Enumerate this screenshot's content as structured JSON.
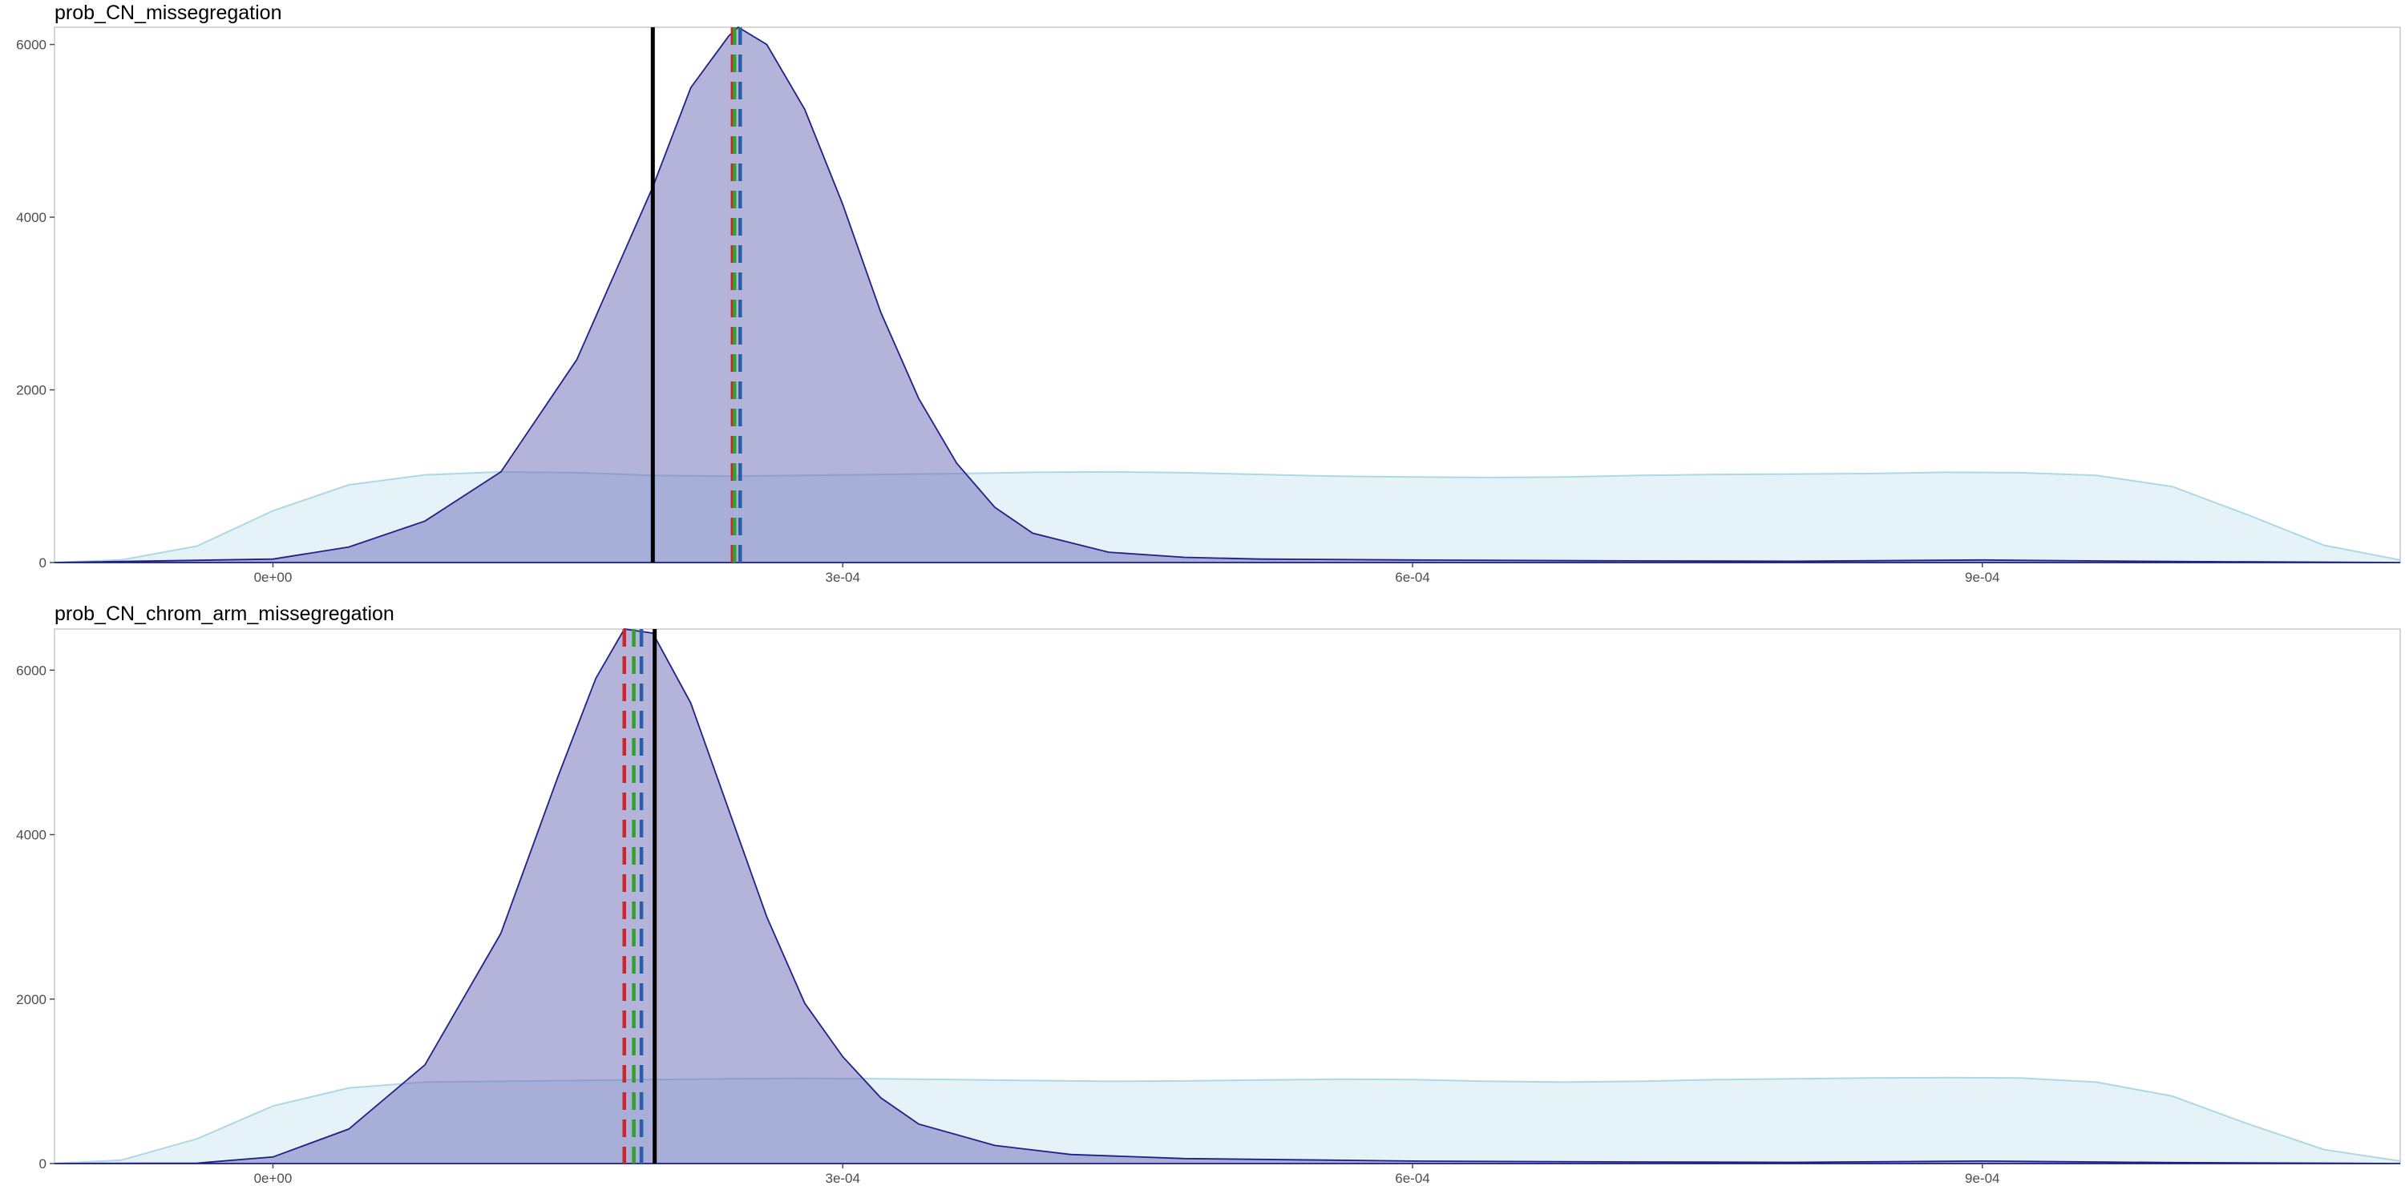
{
  "chart_data": [
    {
      "type": "area",
      "title": "prob_CN_missegregation",
      "xlabel": "",
      "ylabel": "",
      "xlim": [
        -0.000115,
        0.00112
      ],
      "ylim": [
        0,
        6200
      ],
      "xticks": [
        0.0,
        0.0003,
        0.0006,
        0.0009
      ],
      "xtick_labels": [
        "0e+00",
        "3e-04",
        "6e-04",
        "9e-04"
      ],
      "yticks": [
        0,
        2000,
        4000,
        6000
      ],
      "ytick_labels": [
        "0",
        "2000",
        "4000",
        "6000"
      ],
      "grid": false,
      "legend": "none",
      "series": [
        {
          "role": "prior",
          "color": "#add8e6",
          "points": [
            [
              -0.000115,
              2
            ],
            [
              -8e-05,
              30
            ],
            [
              -4e-05,
              190
            ],
            [
              0.0,
              600
            ],
            [
              4e-05,
              900
            ],
            [
              8e-05,
              1015
            ],
            [
              0.00012,
              1050
            ],
            [
              0.00016,
              1040
            ],
            [
              0.0002,
              1010
            ],
            [
              0.00024,
              1000
            ],
            [
              0.00028,
              1010
            ],
            [
              0.00032,
              1020
            ],
            [
              0.00036,
              1030
            ],
            [
              0.0004,
              1045
            ],
            [
              0.00044,
              1050
            ],
            [
              0.00048,
              1040
            ],
            [
              0.00052,
              1020
            ],
            [
              0.00056,
              1000
            ],
            [
              0.0006,
              990
            ],
            [
              0.00064,
              985
            ],
            [
              0.00068,
              990
            ],
            [
              0.00072,
              1010
            ],
            [
              0.00076,
              1020
            ],
            [
              0.0008,
              1025
            ],
            [
              0.00084,
              1030
            ],
            [
              0.00088,
              1045
            ],
            [
              0.00092,
              1040
            ],
            [
              0.00096,
              1010
            ],
            [
              0.001,
              880
            ],
            [
              0.00104,
              550
            ],
            [
              0.00108,
              200
            ],
            [
              0.00112,
              30
            ]
          ]
        },
        {
          "role": "posterior",
          "color": "#3a3aa8",
          "points": [
            [
              -0.000115,
              0
            ],
            [
              0.0,
              40
            ],
            [
              4e-05,
              180
            ],
            [
              8e-05,
              480
            ],
            [
              0.00012,
              1050
            ],
            [
              0.00016,
              2350
            ],
            [
              0.0002,
              4350
            ],
            [
              0.00022,
              5500
            ],
            [
              0.00024,
              6100
            ],
            [
              0.000245,
              6200
            ],
            [
              0.00026,
              6000
            ],
            [
              0.00028,
              5250
            ],
            [
              0.0003,
              4150
            ],
            [
              0.00032,
              2900
            ],
            [
              0.00034,
              1900
            ],
            [
              0.00036,
              1150
            ],
            [
              0.00038,
              640
            ],
            [
              0.0004,
              340
            ],
            [
              0.00044,
              120
            ],
            [
              0.00048,
              60
            ],
            [
              0.00052,
              40
            ],
            [
              0.0006,
              30
            ],
            [
              0.0007,
              20
            ],
            [
              0.0008,
              15
            ],
            [
              0.0009,
              30
            ],
            [
              0.001,
              12
            ],
            [
              0.00112,
              0
            ]
          ]
        }
      ],
      "vlines": [
        {
          "x": 0.0002,
          "color": "#000000",
          "style": "solid"
        },
        {
          "x": 0.000242,
          "color": "#cd2626",
          "style": "dashed"
        },
        {
          "x": 0.000243,
          "color": "#32a02c",
          "style": "dashed"
        },
        {
          "x": 0.000246,
          "color": "#2b5ea8",
          "style": "dashed"
        }
      ]
    },
    {
      "type": "area",
      "title": "prob_CN_chrom_arm_missegregation",
      "xlabel": "",
      "ylabel": "",
      "xlim": [
        -0.000115,
        0.00112
      ],
      "ylim": [
        0,
        6500
      ],
      "xticks": [
        0.0,
        0.0003,
        0.0006,
        0.0009
      ],
      "xtick_labels": [
        "0e+00",
        "3e-04",
        "6e-04",
        "9e-04"
      ],
      "yticks": [
        0,
        2000,
        4000,
        6000
      ],
      "ytick_labels": [
        "0",
        "2000",
        "4000",
        "6000"
      ],
      "grid": false,
      "legend": "none",
      "series": [
        {
          "role": "prior",
          "color": "#add8e6",
          "points": [
            [
              -0.000115,
              2
            ],
            [
              -8e-05,
              40
            ],
            [
              -4e-05,
              300
            ],
            [
              0.0,
              700
            ],
            [
              4e-05,
              920
            ],
            [
              8e-05,
              990
            ],
            [
              0.00012,
              1000
            ],
            [
              0.00016,
              1010
            ],
            [
              0.0002,
              1020
            ],
            [
              0.00024,
              1030
            ],
            [
              0.00028,
              1035
            ],
            [
              0.00032,
              1030
            ],
            [
              0.00036,
              1020
            ],
            [
              0.0004,
              1010
            ],
            [
              0.00044,
              1000
            ],
            [
              0.00048,
              1005
            ],
            [
              0.00052,
              1015
            ],
            [
              0.00056,
              1025
            ],
            [
              0.0006,
              1020
            ],
            [
              0.00064,
              1000
            ],
            [
              0.00068,
              990
            ],
            [
              0.00072,
              1000
            ],
            [
              0.00076,
              1020
            ],
            [
              0.0008,
              1030
            ],
            [
              0.00084,
              1040
            ],
            [
              0.00088,
              1045
            ],
            [
              0.00092,
              1040
            ],
            [
              0.00096,
              990
            ],
            [
              0.001,
              820
            ],
            [
              0.00104,
              480
            ],
            [
              0.00108,
              170
            ],
            [
              0.00112,
              30
            ]
          ]
        },
        {
          "role": "posterior",
          "color": "#3a3aa8",
          "points": [
            [
              -0.000115,
              0
            ],
            [
              -4e-05,
              5
            ],
            [
              0.0,
              80
            ],
            [
              4e-05,
              420
            ],
            [
              8e-05,
              1200
            ],
            [
              0.00012,
              2800
            ],
            [
              0.00015,
              4700
            ],
            [
              0.00017,
              5900
            ],
            [
              0.000185,
              6500
            ],
            [
              0.0002,
              6450
            ],
            [
              0.00022,
              5600
            ],
            [
              0.00024,
              4300
            ],
            [
              0.00026,
              3000
            ],
            [
              0.00028,
              1950
            ],
            [
              0.0003,
              1300
            ],
            [
              0.00032,
              800
            ],
            [
              0.00034,
              480
            ],
            [
              0.00038,
              220
            ],
            [
              0.00042,
              110
            ],
            [
              0.00048,
              60
            ],
            [
              0.0006,
              30
            ],
            [
              0.0007,
              20
            ],
            [
              0.0008,
              15
            ],
            [
              0.0009,
              30
            ],
            [
              0.001,
              12
            ],
            [
              0.00112,
              0
            ]
          ]
        }
      ],
      "vlines": [
        {
          "x": 0.000201,
          "color": "#000000",
          "style": "solid"
        },
        {
          "x": 0.000185,
          "color": "#cd2626",
          "style": "dashed"
        },
        {
          "x": 0.00019,
          "color": "#32a02c",
          "style": "dashed"
        },
        {
          "x": 0.000194,
          "color": "#2b5ea8",
          "style": "dashed"
        }
      ]
    }
  ]
}
